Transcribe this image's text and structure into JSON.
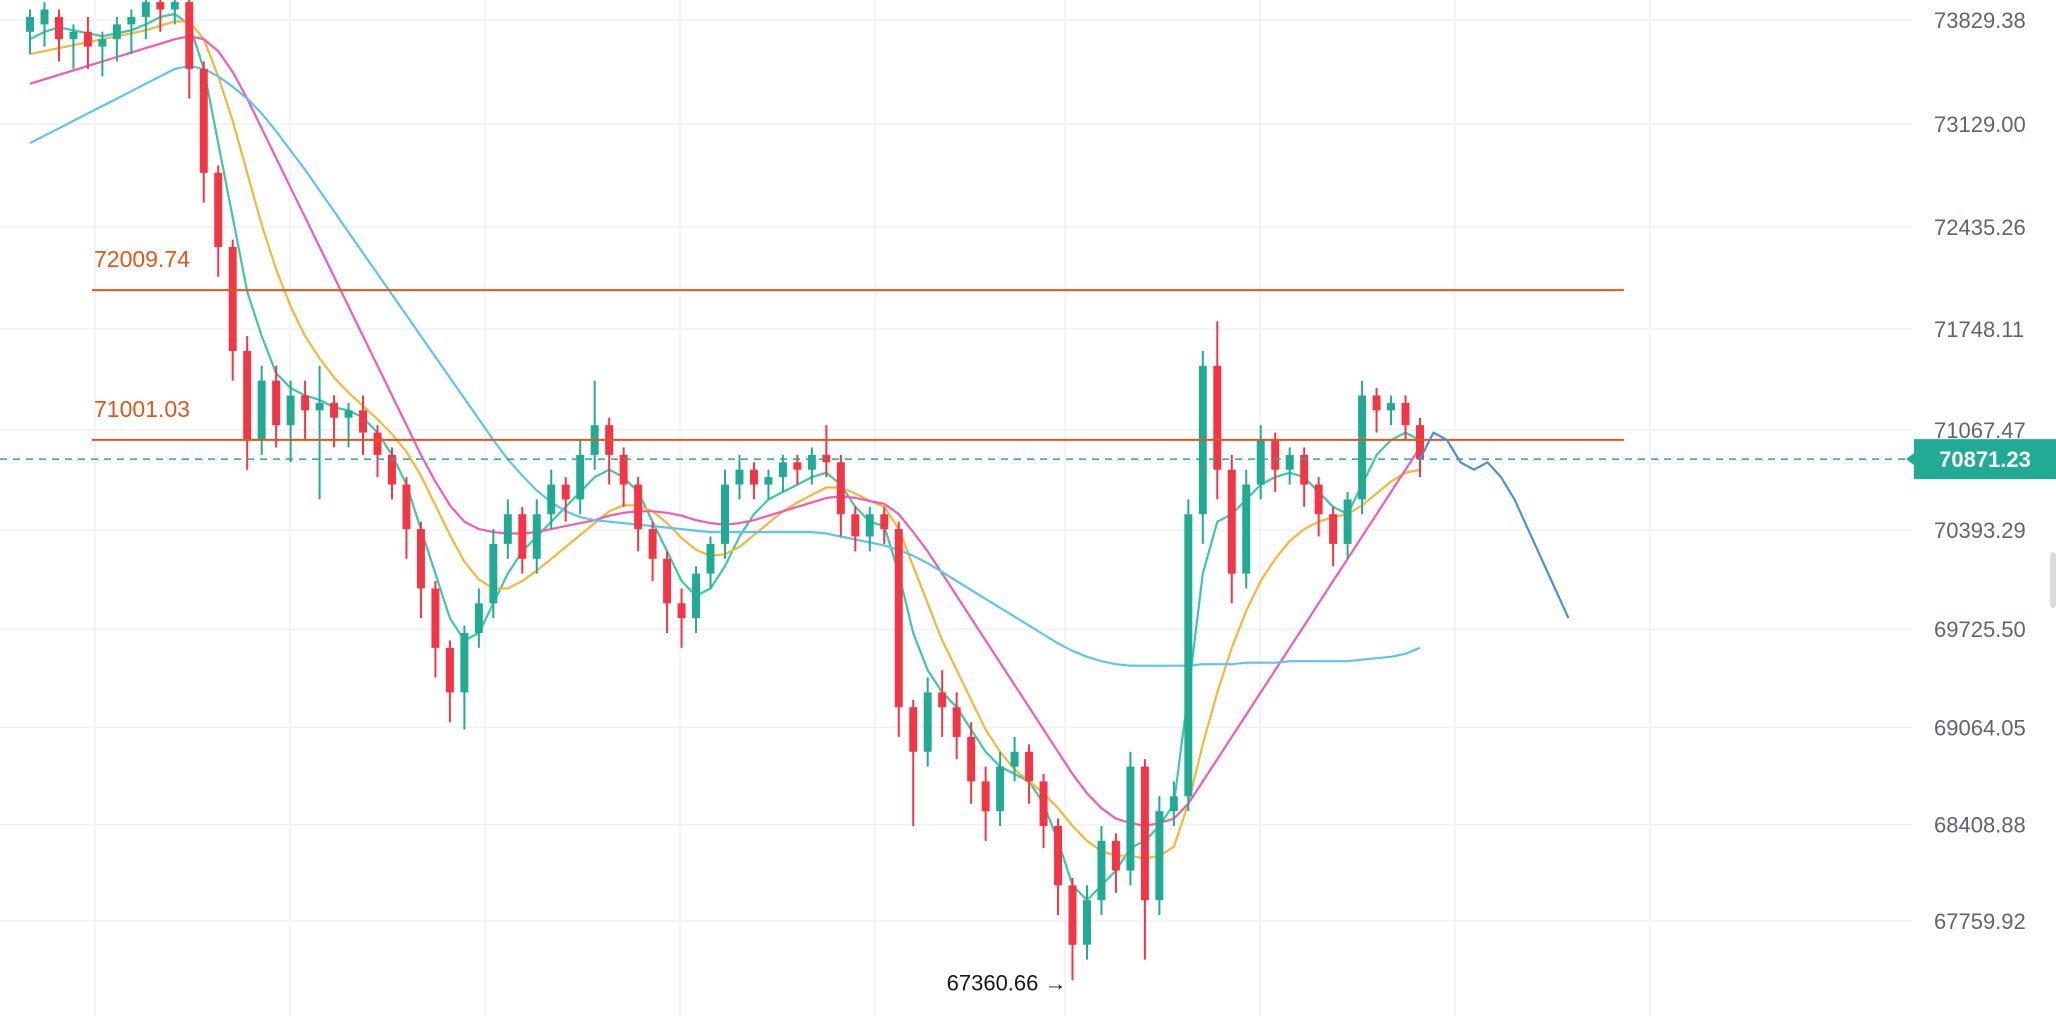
{
  "chart_data": {
    "type": "candlestick",
    "title": "",
    "y_axis": {
      "ticks": [
        "73829.38",
        "73129.00",
        "72435.26",
        "71748.11",
        "71067.47",
        "70393.29",
        "69725.50",
        "69064.05",
        "68408.88",
        "67759.92"
      ],
      "tick_values": [
        73829.38,
        73129.0,
        72435.26,
        71748.11,
        71067.47,
        70393.29,
        69725.5,
        69064.05,
        68408.88,
        67759.92
      ],
      "position": "right"
    },
    "ylim": [
      67200,
      74000
    ],
    "grid": true,
    "current_price": {
      "label": "70871.23",
      "value": 70871.23,
      "color": "#22ab94"
    },
    "horizontal_levels": [
      {
        "label": "72009.74",
        "value": 72009.74,
        "color": "#e0561b"
      },
      {
        "label": "71001.03",
        "value": 71001.03,
        "color": "#e0561b"
      }
    ],
    "low_marker": {
      "label": "67360.66",
      "value": 67360.66,
      "arrow": "→"
    },
    "colors": {
      "up": "#22ab94",
      "down": "#f23645"
    },
    "ohlc": [
      [
        73750,
        73850,
        73700,
        73900,
        73600
      ],
      [
        73800,
        73900,
        73750,
        73950,
        73650
      ],
      [
        73850,
        73700,
        73700,
        73900,
        73550
      ],
      [
        73700,
        73750,
        73600,
        73800,
        73500
      ],
      [
        73750,
        73650,
        73600,
        73850,
        73500
      ],
      [
        73650,
        73700,
        73550,
        73750,
        73450
      ],
      [
        73700,
        73800,
        73650,
        73850,
        73550
      ],
      [
        73800,
        73850,
        73700,
        73900,
        73600
      ],
      [
        73850,
        73950,
        73800,
        74000,
        73700
      ],
      [
        73950,
        73900,
        73850,
        74000,
        73750
      ],
      [
        73900,
        73950,
        73850,
        74000,
        73800
      ],
      [
        73950,
        73500,
        73400,
        74000,
        73300
      ],
      [
        73500,
        72800,
        72700,
        73550,
        72600
      ],
      [
        72800,
        72300,
        72200,
        72850,
        72100
      ],
      [
        72300,
        71600,
        71500,
        72350,
        71400
      ],
      [
        71600,
        71000,
        70900,
        71700,
        70800
      ],
      [
        71000,
        71400,
        70950,
        71500,
        70900
      ],
      [
        71400,
        71100,
        71000,
        71500,
        70950
      ],
      [
        71100,
        71300,
        71050,
        71400,
        70850
      ],
      [
        71300,
        71200,
        71100,
        71400,
        71000
      ],
      [
        71200,
        71250,
        71100,
        71500,
        70600
      ],
      [
        71250,
        71150,
        71050,
        71300,
        70950
      ],
      [
        71150,
        71200,
        71000,
        71250,
        70950
      ],
      [
        71200,
        71050,
        70950,
        71300,
        70900
      ],
      [
        71050,
        70900,
        70800,
        71100,
        70750
      ],
      [
        70900,
        70700,
        70650,
        70950,
        70600
      ],
      [
        70700,
        70400,
        70300,
        70750,
        70200
      ],
      [
        70400,
        70000,
        69900,
        70450,
        69800
      ],
      [
        70000,
        69600,
        69500,
        70050,
        69400
      ],
      [
        69600,
        69300,
        69200,
        69650,
        69100
      ],
      [
        69300,
        69700,
        69250,
        69750,
        69050
      ],
      [
        69700,
        69900,
        69650,
        70000,
        69600
      ],
      [
        69900,
        70300,
        69850,
        70400,
        69800
      ],
      [
        70300,
        70500,
        70250,
        70600,
        70200
      ],
      [
        70500,
        70200,
        70150,
        70550,
        70100
      ],
      [
        70200,
        70500,
        70150,
        70600,
        70100
      ],
      [
        70500,
        70700,
        70450,
        70800,
        70400
      ],
      [
        70700,
        70600,
        70500,
        70750,
        70450
      ],
      [
        70600,
        70900,
        70550,
        71000,
        70500
      ],
      [
        70900,
        71100,
        70850,
        71400,
        70800
      ],
      [
        71100,
        70900,
        70800,
        71150,
        70700
      ],
      [
        70900,
        70700,
        70600,
        70950,
        70550
      ],
      [
        70700,
        70400,
        70300,
        70750,
        70250
      ],
      [
        70400,
        70200,
        70100,
        70450,
        70050
      ],
      [
        70200,
        69900,
        69800,
        70250,
        69700
      ],
      [
        69900,
        69800,
        69700,
        70000,
        69600
      ],
      [
        69800,
        70100,
        69750,
        70150,
        69700
      ],
      [
        70100,
        70300,
        70050,
        70350,
        70000
      ],
      [
        70300,
        70700,
        70250,
        70800,
        70200
      ],
      [
        70700,
        70800,
        70650,
        70900,
        70600
      ],
      [
        70800,
        70700,
        70650,
        70850,
        70600
      ],
      [
        70700,
        70750,
        70650,
        70800,
        70600
      ],
      [
        70750,
        70850,
        70700,
        70900,
        70650
      ],
      [
        70850,
        70800,
        70750,
        70900,
        70700
      ],
      [
        70800,
        70900,
        70750,
        70950,
        70700
      ],
      [
        70900,
        70850,
        70800,
        71100,
        70750
      ],
      [
        70850,
        70500,
        70400,
        70900,
        70350
      ],
      [
        70500,
        70350,
        70300,
        70550,
        70250
      ],
      [
        70350,
        70500,
        70300,
        70550,
        70250
      ],
      [
        70500,
        70400,
        70350,
        70550,
        70300
      ],
      [
        70400,
        69200,
        69100,
        70450,
        69000
      ],
      [
        69200,
        68900,
        68800,
        69250,
        68400
      ],
      [
        68900,
        69300,
        68850,
        69400,
        68800
      ],
      [
        69300,
        69200,
        69100,
        69450,
        69000
      ],
      [
        69200,
        69000,
        68900,
        69300,
        68850
      ],
      [
        69000,
        68700,
        68600,
        69100,
        68550
      ],
      [
        68700,
        68500,
        68400,
        68800,
        68300
      ],
      [
        68500,
        68800,
        68450,
        68900,
        68400
      ],
      [
        68800,
        68900,
        68750,
        69000,
        68700
      ],
      [
        68900,
        68700,
        68600,
        68950,
        68550
      ],
      [
        68700,
        68400,
        68300,
        68750,
        68250
      ],
      [
        68400,
        68000,
        67900,
        68450,
        67800
      ],
      [
        68000,
        67600,
        67500,
        68050,
        67360.66
      ],
      [
        67600,
        67900,
        67550,
        68000,
        67500
      ],
      [
        67900,
        68300,
        67850,
        68400,
        67800
      ],
      [
        68300,
        68100,
        68000,
        68350,
        67950
      ],
      [
        68100,
        68800,
        68050,
        68900,
        68000
      ],
      [
        68800,
        67900,
        67800,
        68850,
        67500
      ],
      [
        67900,
        68500,
        67850,
        68600,
        67800
      ],
      [
        68500,
        68600,
        68450,
        68700,
        68400
      ],
      [
        68600,
        70500,
        68550,
        70600,
        68500
      ],
      [
        70500,
        71500,
        70400,
        71600,
        70300
      ],
      [
        71500,
        70800,
        70700,
        71800,
        70600
      ],
      [
        70800,
        70100,
        70000,
        70900,
        69900
      ],
      [
        70100,
        70700,
        70050,
        70800,
        70000
      ],
      [
        70700,
        71000,
        70650,
        71100,
        70600
      ],
      [
        71000,
        70800,
        70700,
        71050,
        70650
      ],
      [
        70800,
        70900,
        70750,
        70950,
        70700
      ],
      [
        70900,
        70700,
        70600,
        70950,
        70550
      ],
      [
        70700,
        70500,
        70400,
        70750,
        70350
      ],
      [
        70500,
        70300,
        70200,
        70550,
        70150
      ],
      [
        70300,
        70600,
        70250,
        70650,
        70200
      ],
      [
        70600,
        71300,
        70550,
        71400,
        70500
      ],
      [
        71300,
        71200,
        71100,
        71350,
        71050
      ],
      [
        71200,
        71250,
        71150,
        71300,
        71100
      ],
      [
        71250,
        71100,
        71050,
        71300,
        71000
      ],
      [
        71100,
        70871.23,
        70800,
        71150,
        70750
      ]
    ],
    "moving_averages": [
      {
        "color": "#3cc8a8",
        "values": [
          73700,
          73750,
          73780,
          73760,
          73740,
          73720,
          73740,
          73760,
          73800,
          73850,
          73870,
          73800,
          73500,
          73000,
          72500,
          72000,
          71700,
          71450,
          71350,
          71300,
          71270,
          71220,
          71200,
          71150,
          71050,
          70900,
          70700,
          70400,
          70100,
          69800,
          69650,
          69700,
          69900,
          70100,
          70250,
          70350,
          70450,
          70550,
          70650,
          70750,
          70800,
          70750,
          70650,
          70450,
          70250,
          70050,
          69950,
          70000,
          70150,
          70350,
          70500,
          70600,
          70650,
          70700,
          70750,
          70780,
          70700,
          70550,
          70450,
          70420,
          70100,
          69700,
          69450,
          69300,
          69200,
          69050,
          68900,
          68800,
          68750,
          68700,
          68550,
          68300,
          68000,
          67900,
          68000,
          68100,
          68250,
          68300,
          68400,
          68550,
          69300,
          70100,
          70450,
          70500,
          70600,
          70700,
          70750,
          70780,
          70750,
          70650,
          70550,
          70500,
          70700,
          70900,
          71000,
          71050,
          71000
        ]
      },
      {
        "color": "#f5b63a",
        "values": [
          73600,
          73620,
          73640,
          73660,
          73680,
          73700,
          73720,
          73740,
          73760,
          73790,
          73820,
          73820,
          73700,
          73450,
          73150,
          72800,
          72450,
          72150,
          71900,
          71700,
          71550,
          71420,
          71320,
          71230,
          71140,
          71040,
          70920,
          70760,
          70560,
          70360,
          70180,
          70060,
          70000,
          70000,
          70050,
          70120,
          70200,
          70280,
          70360,
          70440,
          70520,
          70560,
          70560,
          70520,
          70440,
          70340,
          70260,
          70220,
          70230,
          70280,
          70360,
          70440,
          70520,
          70580,
          70630,
          70680,
          70680,
          70640,
          70590,
          70550,
          70400,
          70150,
          69900,
          69650,
          69450,
          69250,
          69050,
          68900,
          68780,
          68700,
          68620,
          68520,
          68400,
          68300,
          68230,
          68200,
          68200,
          68180,
          68200,
          68260,
          68550,
          68950,
          69300,
          69600,
          69850,
          70050,
          70200,
          70320,
          70400,
          70450,
          70480,
          70500,
          70560,
          70640,
          70720,
          70780,
          70800
        ]
      },
      {
        "color": "#f15bb5",
        "values": [
          73400,
          73430,
          73460,
          73490,
          73520,
          73550,
          73580,
          73610,
          73640,
          73670,
          73700,
          73720,
          73700,
          73620,
          73480,
          73300,
          73100,
          72900,
          72700,
          72500,
          72300,
          72100,
          71900,
          71700,
          71500,
          71300,
          71100,
          70900,
          70720,
          70560,
          70450,
          70400,
          70380,
          70370,
          70370,
          70380,
          70400,
          70420,
          70440,
          70460,
          70490,
          70510,
          70520,
          70520,
          70510,
          70490,
          70460,
          70440,
          70430,
          70440,
          70460,
          70490,
          70520,
          70550,
          70580,
          70610,
          70620,
          70610,
          70590,
          70570,
          70500,
          70380,
          70250,
          70100,
          69950,
          69800,
          69650,
          69500,
          69350,
          69200,
          69050,
          68900,
          68750,
          68620,
          68520,
          68450,
          68420,
          68400,
          68420,
          68450,
          68550,
          68700,
          68850,
          69000,
          69150,
          69300,
          69450,
          69600,
          69750,
          69900,
          70050,
          70200,
          70350,
          70500,
          70650,
          70800,
          70950
        ]
      },
      {
        "color": "#5ec4ea",
        "values": [
          73000,
          73050,
          73100,
          73150,
          73200,
          73250,
          73300,
          73350,
          73400,
          73450,
          73500,
          73520,
          73500,
          73450,
          73380,
          73300,
          73200,
          73080,
          72950,
          72820,
          72680,
          72540,
          72400,
          72260,
          72120,
          71980,
          71840,
          71700,
          71560,
          71420,
          71280,
          71140,
          71000,
          70870,
          70760,
          70660,
          70580,
          70520,
          70480,
          70460,
          70450,
          70440,
          70430,
          70420,
          70410,
          70400,
          70390,
          70380,
          70380,
          70380,
          70380,
          70380,
          70380,
          70380,
          70380,
          70370,
          70350,
          70330,
          70310,
          70290,
          70260,
          70220,
          70170,
          70110,
          70050,
          69990,
          69930,
          69870,
          69810,
          69750,
          69690,
          69630,
          69580,
          69540,
          69510,
          69490,
          69480,
          69480,
          69480,
          69480,
          69480,
          69490,
          69490,
          69490,
          69500,
          69500,
          69500,
          69510,
          69510,
          69510,
          69510,
          69510,
          69520,
          69530,
          69540,
          69560,
          69600
        ]
      }
    ],
    "projection": {
      "color": "#4a90d9",
      "values": [
        70871.23,
        71050,
        71000,
        70850,
        70800,
        70850,
        70750,
        70600,
        70400,
        70200,
        70000,
        69800
      ]
    }
  }
}
